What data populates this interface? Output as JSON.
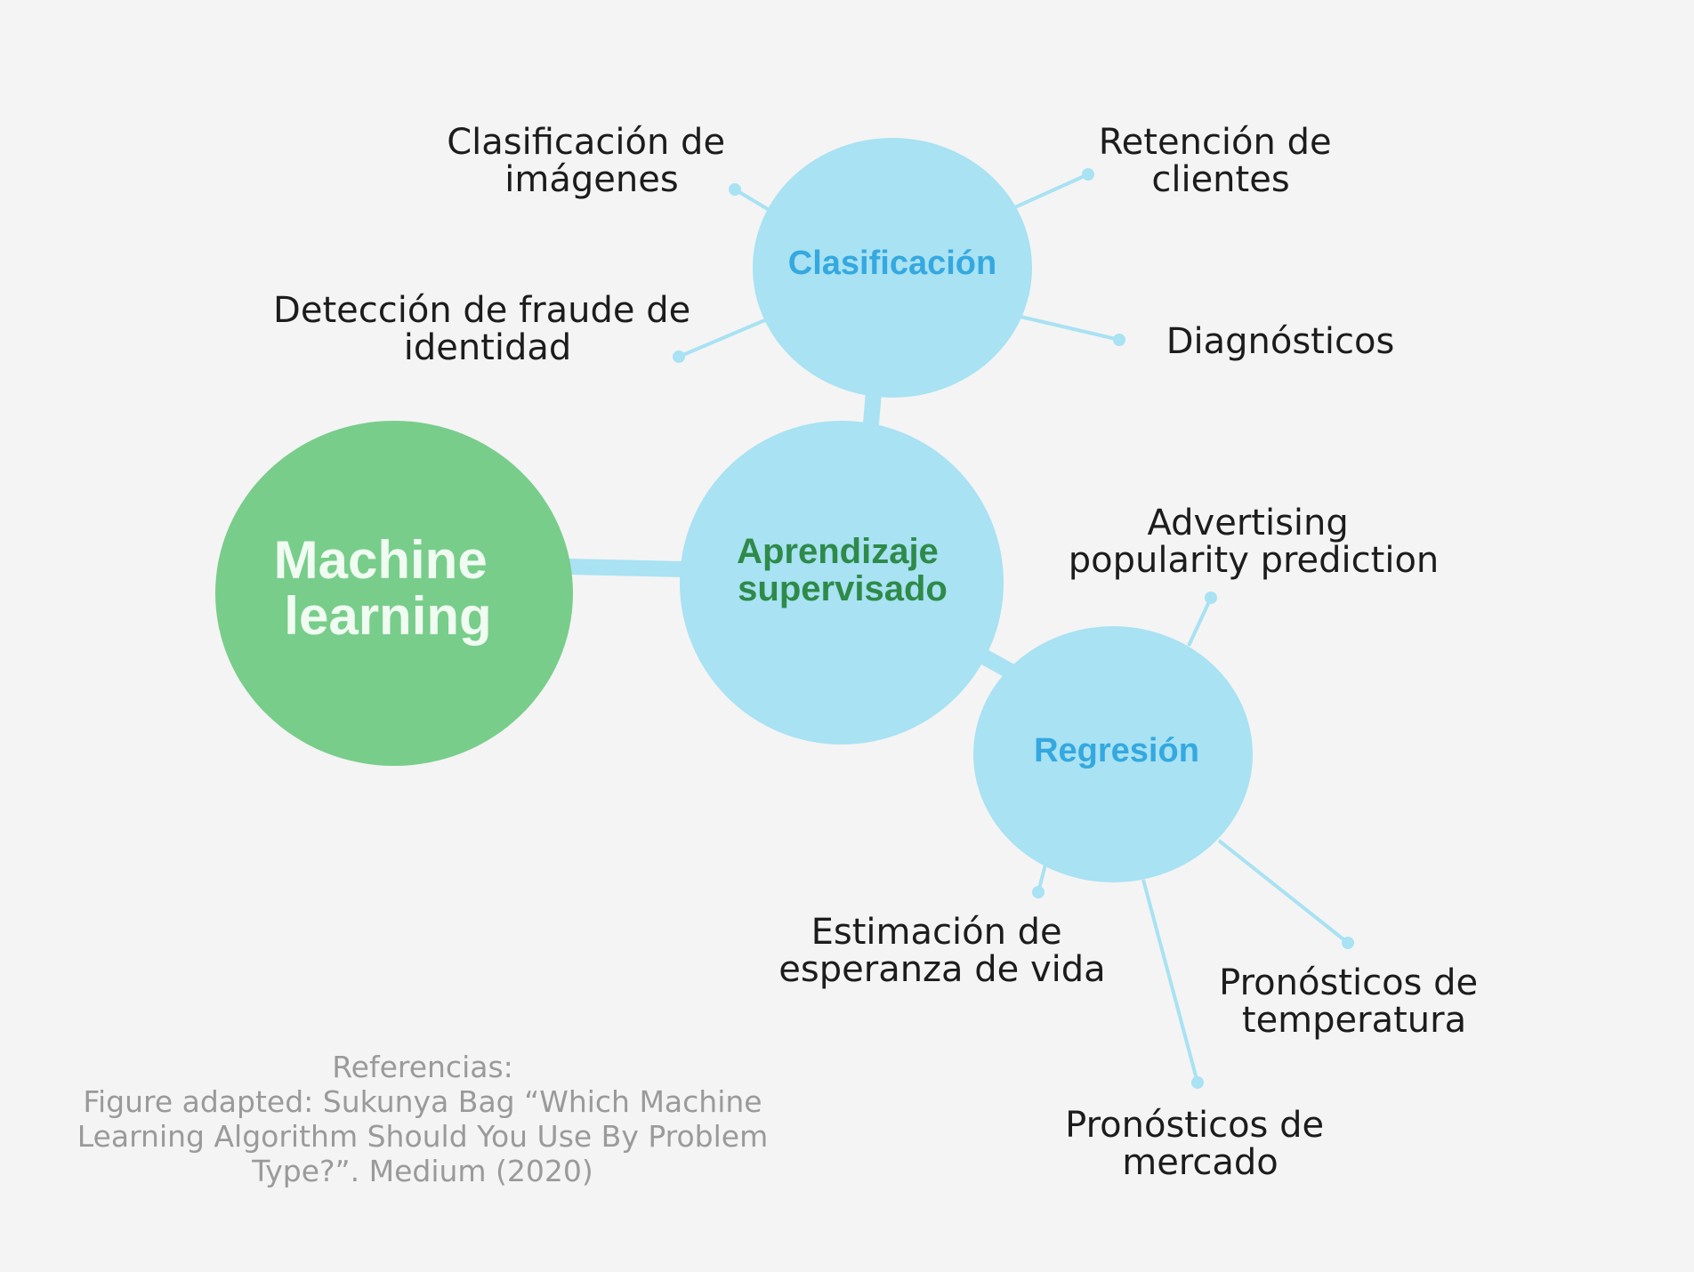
{
  "colors": {
    "background": "#f4f4f4",
    "root_fill": "#78cd8a",
    "root_text": "#f0fbf2",
    "node_fill": "#a8e2f3",
    "supervised_text": "#2e8a49",
    "category_text": "#35a8e0",
    "connector": "#a8e2f3",
    "leaf_text": "#1c1c1c",
    "reference_text": "#9a9a9a"
  },
  "nodes": {
    "root": {
      "lines": [
        "Machine",
        "learning"
      ]
    },
    "supervised": {
      "lines": [
        "Aprendizaje",
        "supervisado"
      ]
    },
    "classification": {
      "lines": [
        "Clasificación"
      ]
    },
    "regression": {
      "lines": [
        "Regresión"
      ]
    }
  },
  "leaves": {
    "image_classification": {
      "lines": [
        "Clasificación de",
        "imágenes"
      ]
    },
    "identity_fraud": {
      "lines": [
        "Detección de fraude de",
        "identidad"
      ]
    },
    "customer_retention": {
      "lines": [
        "Retención de",
        "clientes"
      ]
    },
    "diagnostics": {
      "lines": [
        "Diagnósticos"
      ]
    },
    "advertising": {
      "lines": [
        "Advertising",
        "popularity prediction"
      ]
    },
    "life_expectancy": {
      "lines": [
        "Estimación de",
        "esperanza de vida"
      ]
    },
    "temperature": {
      "lines": [
        "Pronósticos de",
        "temperatura"
      ]
    },
    "market": {
      "lines": [
        "Pronósticos de",
        "mercado"
      ]
    }
  },
  "reference": {
    "heading": "Referencias:",
    "line1": "Figure adapted: Sukunya Bag “Which Machine",
    "line2": "Learning Algorithm Should You Use By Problem",
    "line3": "Type?”. Medium (2020)"
  }
}
